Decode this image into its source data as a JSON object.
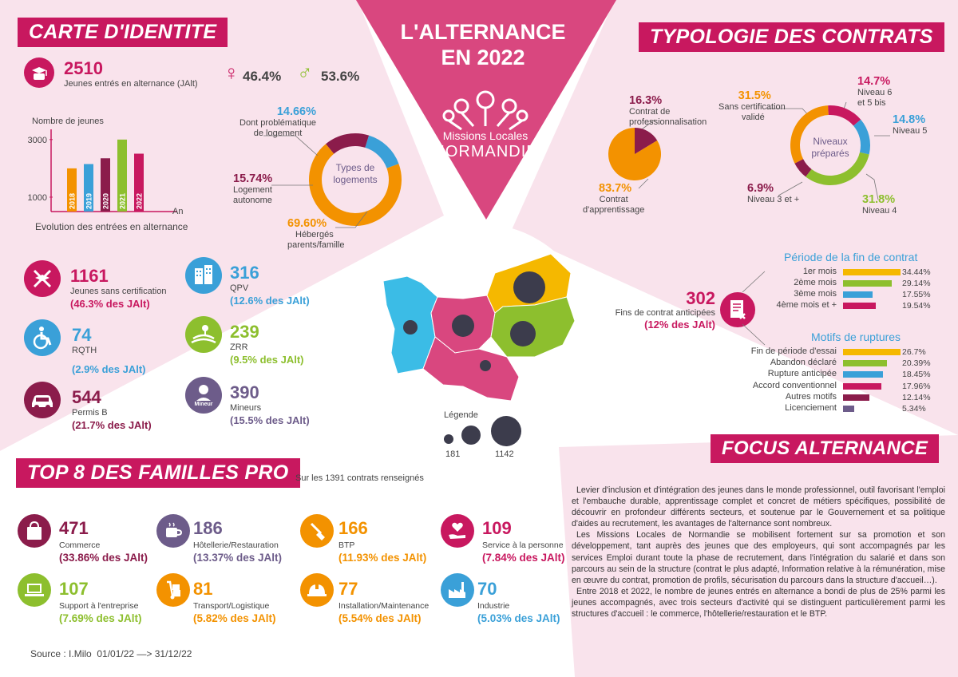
{
  "header": {
    "title_line1": "L'ALTERNANCE",
    "title_line2": "EN 2022",
    "logo_line1": "Missions Locales",
    "logo_line2": "NORMANDIE"
  },
  "colors": {
    "pink": "#c8185f",
    "magenta": "#d9477f",
    "purple": "#8b1c4b",
    "orange": "#f39200",
    "green": "#8dbf2e",
    "blue": "#3aa0d8",
    "yellow": "#f5b800",
    "slate": "#3c3c4c"
  },
  "identity": {
    "banner": "CARTE D'IDENTITE",
    "total": {
      "value": "2510",
      "label": "Jeunes entrés en alternance (JAlt)"
    },
    "female": "46.4%",
    "male": "53.6%",
    "stats": [
      {
        "value": "1161",
        "label": "Jeunes sans certification",
        "pct": "(46.3% des JAlt)",
        "icon": "no-diploma-icon"
      },
      {
        "value": "316",
        "label": "QPV",
        "pct": "(12.6% des JAlt)",
        "icon": "building-icon"
      },
      {
        "value": "74",
        "label": "RQTH",
        "pct": "(2.9% des JAlt)",
        "icon": "wheelchair-icon"
      },
      {
        "value": "239",
        "label": "ZRR",
        "pct": "(9.5% des JAlt)",
        "icon": "rural-icon"
      },
      {
        "value": "544",
        "label": "Permis B",
        "pct": "(21.7% des JAlt)",
        "icon": "car-icon"
      },
      {
        "value": "390",
        "label": "Mineurs",
        "pct": "(15.5% des JAlt)",
        "icon": "minor-icon",
        "badge": "Mineur"
      }
    ]
  },
  "evolution_chart": {
    "title": "Evolution des entrées en alternance",
    "ylabel": "Nombre de jeunes",
    "xlabel": "An"
  },
  "logement": {
    "center_label_line1": "Types de",
    "center_label_line2": "logements",
    "items": [
      {
        "pct": "14.66%",
        "label_line1": "Dont problématique",
        "label_line2": "de logement"
      },
      {
        "pct": "15.74%",
        "label_line1": "Logement",
        "label_line2": "autonome"
      },
      {
        "pct": "69.60%",
        "label_line1": "Hébergés",
        "label_line2": "parents/famille"
      }
    ]
  },
  "typologie": {
    "banner": "TYPOLOGIE DES CONTRATS",
    "contract_types": [
      {
        "pct": "16.3%",
        "label_line1": "Contrat de",
        "label_line2": "professionnalisation"
      },
      {
        "pct": "83.7%",
        "label_line1": "Contrat",
        "label_line2": "d'apprentissage"
      }
    ],
    "niveaux": {
      "center_line1": "Niveaux",
      "center_line2": "préparés",
      "items": [
        {
          "pct": "31.5%",
          "label_line1": "Sans certification",
          "label_line2": "validé"
        },
        {
          "pct": "14.7%",
          "label_line1": "Niveau 6",
          "label_line2": "et 5 bis"
        },
        {
          "pct": "14.8%",
          "label_line1": "Niveau 5",
          "label_line2": ""
        },
        {
          "pct": "31.8%",
          "label_line1": "Niveau 4",
          "label_line2": ""
        },
        {
          "pct": "6.9%",
          "label_line1": "Niveau 3 et +",
          "label_line2": ""
        }
      ]
    }
  },
  "ruptures": {
    "value": "302",
    "label": "Fins de contrat anticipées",
    "pct": "(12% des JAlt)",
    "periode_title": "Période de la fin de contrat",
    "periode": [
      {
        "label": "1er mois",
        "pct": "34.44%",
        "value": 34.44,
        "color": "#f5b800"
      },
      {
        "label": "2ème mois",
        "pct": "29.14%",
        "value": 29.14,
        "color": "#8dbf2e"
      },
      {
        "label": "3ème mois",
        "pct": "17.55%",
        "value": 17.55,
        "color": "#3aa0d8"
      },
      {
        "label": "4ème mois et +",
        "pct": "19.54%",
        "value": 19.54,
        "color": "#c8185f"
      }
    ],
    "motifs_title": "Motifs de ruptures",
    "motifs": [
      {
        "label": "Fin de période d'essai",
        "pct": "26.7%",
        "value": 26.7,
        "color": "#f5b800"
      },
      {
        "label": "Abandon déclaré",
        "pct": "20.39%",
        "value": 20.39,
        "color": "#8dbf2e"
      },
      {
        "label": "Rupture anticipée",
        "pct": "18.45%",
        "value": 18.45,
        "color": "#3aa0d8"
      },
      {
        "label": "Accord conventionnel",
        "pct": "17.96%",
        "value": 17.96,
        "color": "#c8185f"
      },
      {
        "label": "Autres motifs",
        "pct": "12.14%",
        "value": 12.14,
        "color": "#8b1c4b"
      },
      {
        "label": "Licenciement",
        "pct": "5.34%",
        "value": 5.34,
        "color": "#6d5c8a"
      }
    ]
  },
  "map": {
    "legend_title": "Légende",
    "legend_min": "181",
    "legend_max": "1142"
  },
  "focus": {
    "banner": "FOCUS ALTERNANCE",
    "paragraphs": [
      "Levier d'inclusion et d'intégration des jeunes dans le monde professionnel, outil favorisant l'emploi et l'embauche durable, apprentissage complet et concret de métiers spécifiques, possibilité de découvrir en profondeur différents secteurs, et soutenue par le Gouvernement et sa politique d'aides au recrutement, les avantages de l'alternance sont nombreux.",
      "Les Missions Locales de Normandie se mobilisent fortement sur sa promotion et son développement, tant auprès des jeunes que des employeurs, qui sont accompagnés par les services Emploi durant toute la phase de recrutement, dans l'intégration du salarié et dans son parcours au sein de la structure (contrat le plus adapté, Information relative à la rémunération, mise en œuvre du contrat, promotion de profils, sécurisation du parcours dans la structure d'accueil…).",
      "Entre 2018 et 2022, le nombre de jeunes entrés en alternance a bondi de plus de 25% parmi les jeunes accompagnés, avec trois secteurs d'activité qui se distinguent particulièrement parmi les structures d'accueil : le commerce, l'hôtellerie/restauration et le BTP."
    ]
  },
  "familles": {
    "banner": "TOP 8 DES FAMILLES PRO",
    "subtitle": "Sur les 1391 contrats renseignés",
    "items": [
      {
        "value": "471",
        "label": "Commerce",
        "pct": "(33.86% des JAlt)",
        "color": "#8b1c4b",
        "icon": "shopping-bag-icon"
      },
      {
        "value": "186",
        "label": "Hôtellerie/Restauration",
        "pct": "(13.37% des JAlt)",
        "color": "#6d5c8a",
        "icon": "cup-icon"
      },
      {
        "value": "166",
        "label": "BTP",
        "pct": "(11.93% des JAlt)",
        "color": "#f39200",
        "icon": "shovel-icon"
      },
      {
        "value": "109",
        "label": "Service à la personne",
        "pct": "(7.84% des JAlt)",
        "color": "#c8185f",
        "icon": "heart-hand-icon"
      },
      {
        "value": "107",
        "label": "Support à l'entreprise",
        "pct": "(7.69% des JAlt)",
        "color": "#8dbf2e",
        "icon": "laptop-icon"
      },
      {
        "value": "81",
        "label": "Transport/Logistique",
        "pct": "(5.82% des JAlt)",
        "color": "#d9477f",
        "icon": "hand-truck-icon"
      },
      {
        "value": "77",
        "label": "Installation/Maintenance",
        "pct": "(5.54% des JAlt)",
        "color": "#f39200",
        "icon": "hard-hat-icon"
      },
      {
        "value": "70",
        "label": "Industrie",
        "pct": "(5.03% des JAlt)",
        "color": "#3aa0d8",
        "icon": "factory-icon"
      }
    ]
  },
  "source": "Source : I.Milo  01/01/22 —> 31/12/22",
  "chart_data": [
    {
      "type": "bar",
      "title": "Evolution des entrées en alternance",
      "ylabel": "Nombre de jeunes",
      "xlabel": "An",
      "categories": [
        "2018",
        "2019",
        "2020",
        "2021",
        "2022"
      ],
      "values": [
        2000,
        2150,
        2350,
        3000,
        2510
      ],
      "colors": [
        "#f39200",
        "#3aa0d8",
        "#8b1c4b",
        "#8dbf2e",
        "#c8185f"
      ],
      "yticks": [
        1000,
        3000
      ],
      "ylim": [
        500,
        3300
      ]
    },
    {
      "type": "pie",
      "title": "Types de logements",
      "labels": [
        "Hébergés parents/famille",
        "Logement autonome",
        "Dont problématique de logement"
      ],
      "values": [
        69.6,
        15.74,
        14.66
      ],
      "colors": [
        "#f39200",
        "#8b1c4b",
        "#3aa0d8"
      ]
    },
    {
      "type": "pie",
      "labels": [
        "Contrat d'apprentissage",
        "Contrat de professionnalisation"
      ],
      "values": [
        83.7,
        16.3
      ],
      "colors": [
        "#f39200",
        "#8b1c4b"
      ]
    },
    {
      "type": "pie",
      "title": "Niveaux préparés",
      "labels": [
        "Sans certification validé",
        "Niveau 6 et 5 bis",
        "Niveau 5",
        "Niveau 4",
        "Niveau 3 et +"
      ],
      "values": [
        31.5,
        14.7,
        14.8,
        31.8,
        6.9
      ],
      "colors": [
        "#f39200",
        "#c8185f",
        "#3aa0d8",
        "#8dbf2e",
        "#8b1c4b"
      ]
    }
  ]
}
